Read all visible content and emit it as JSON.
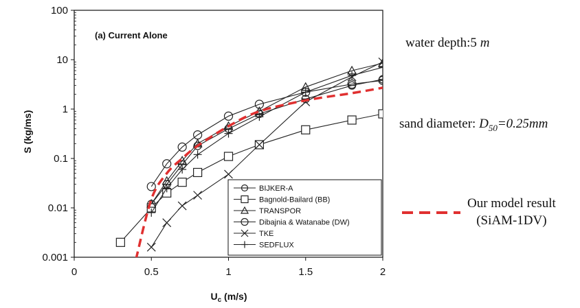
{
  "chart_data": {
    "type": "line",
    "title": "(a) Current Alone",
    "xlabel": "U",
    "xlabel_sub": "c",
    "xlabel_unit": " (m/s)",
    "ylabel": "S (kg/ms)",
    "xlim": [
      0,
      2
    ],
    "ylim": [
      0.001,
      100
    ],
    "yscale": "log",
    "xticks": [
      "0",
      "0.5",
      "1",
      "1.5",
      "2"
    ],
    "xtick_values": [
      0,
      0.5,
      1,
      1.5,
      2
    ],
    "yticks": [
      "0.001",
      "0.01",
      "0.1",
      "1",
      "10",
      "100"
    ],
    "ytick_values": [
      0.001,
      0.01,
      0.1,
      1,
      10,
      100
    ],
    "grid": false,
    "legend_position": "bottom-right",
    "series": [
      {
        "name": "BIJKER-A",
        "marker": "circle-cross",
        "x": [
          0.5,
          0.6,
          0.7,
          0.8,
          1.0,
          1.2,
          1.5,
          1.8,
          2.0
        ],
        "y": [
          0.012,
          0.03,
          0.075,
          0.18,
          0.4,
          0.8,
          1.6,
          3.0,
          4.0
        ]
      },
      {
        "name": "Bagnold-Bailard (BB)",
        "marker": "square",
        "x": [
          0.3,
          0.5,
          0.6,
          0.7,
          0.8,
          1.0,
          1.2,
          1.5,
          1.8,
          2.0
        ],
        "y": [
          0.002,
          0.01,
          0.02,
          0.033,
          0.052,
          0.11,
          0.19,
          0.38,
          0.6,
          0.8
        ]
      },
      {
        "name": "TRANSPOR",
        "marker": "triangle",
        "x": [
          0.5,
          0.6,
          0.7,
          0.8,
          1.0,
          1.2,
          1.5,
          1.8,
          2.0
        ],
        "y": [
          0.012,
          0.035,
          0.09,
          0.2,
          0.45,
          0.9,
          2.8,
          6.0,
          8.5
        ]
      },
      {
        "name": "Dibajnia & Watanabe (DW)",
        "marker": "circle",
        "x": [
          0.5,
          0.6,
          0.7,
          0.8,
          1.0,
          1.2,
          1.5,
          1.8,
          2.0
        ],
        "y": [
          0.027,
          0.078,
          0.17,
          0.3,
          0.72,
          1.25,
          2.2,
          3.2,
          3.8
        ]
      },
      {
        "name": "TKE",
        "marker": "x",
        "x": [
          0.5,
          0.6,
          0.7,
          0.8,
          1.0,
          1.2,
          1.5,
          1.8,
          2.0
        ],
        "y": [
          0.0016,
          0.005,
          0.011,
          0.018,
          0.048,
          0.19,
          1.4,
          4.5,
          9.0
        ]
      },
      {
        "name": "SEDFLUX",
        "marker": "plus",
        "x": [
          0.5,
          0.6,
          0.7,
          0.8,
          1.0,
          1.2,
          1.5,
          1.8,
          2.0
        ],
        "y": [
          0.008,
          0.025,
          0.06,
          0.12,
          0.32,
          0.7,
          2.2,
          4.8,
          7.0
        ]
      },
      {
        "name": "Our model result (SiAM-1DV)",
        "marker": "none",
        "style": "dashed-red",
        "x": [
          0.4,
          0.5,
          0.6,
          0.7,
          0.8,
          1.0,
          1.2,
          1.5,
          1.8,
          2.0
        ],
        "y": [
          0.0009,
          0.015,
          0.05,
          0.1,
          0.18,
          0.45,
          0.9,
          1.5,
          2.1,
          2.7
        ]
      }
    ]
  },
  "annotations": {
    "depth_text": "water depth:5 ",
    "depth_unit": "m",
    "sand_text": "sand diameter: ",
    "sand_var": "D",
    "sand_sub": "50",
    "sand_value": "=0.25mm",
    "model_label_line1": "Our model result",
    "model_label_line2": "(SiAM-1DV)"
  },
  "colors": {
    "axis": "#111111",
    "series": "#222222",
    "model": "#e03030"
  }
}
